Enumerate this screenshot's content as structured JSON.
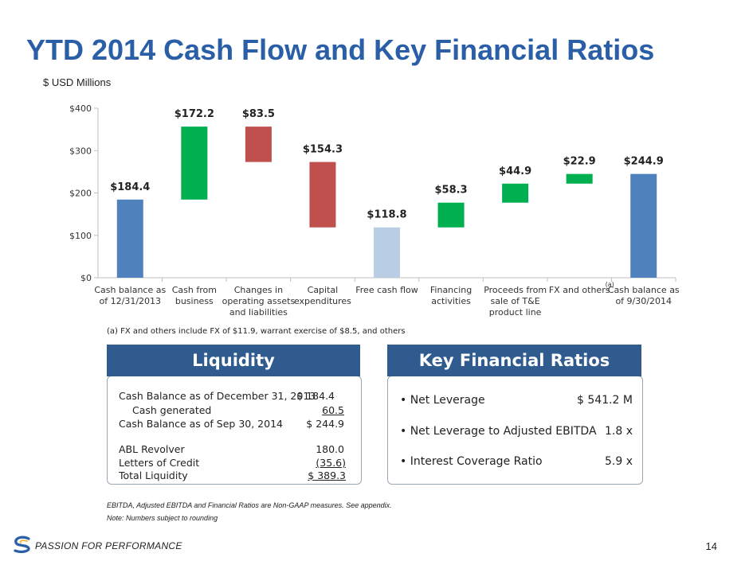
{
  "title": "YTD 2014 Cash Flow and Key Financial Ratios",
  "units": "$ USD Millions",
  "chart_data": {
    "type": "bar",
    "subtype": "waterfall",
    "ylim": [
      0,
      400
    ],
    "yticks": [
      "$0",
      "$100",
      "$200",
      "$300",
      "$400"
    ],
    "ytick_values": [
      0,
      100,
      200,
      300,
      400
    ],
    "categories": [
      [
        "Cash balance as",
        "of 12/31/2013"
      ],
      [
        "Cash from",
        "business"
      ],
      [
        "Changes in",
        "operating assets",
        "and liabilities"
      ],
      [
        "Capital",
        "expenditures"
      ],
      [
        "Free cash flow"
      ],
      [
        "Financing",
        "activities"
      ],
      [
        "Proceeds from",
        "sale of T&E",
        "product line"
      ],
      [
        "FX and others"
      ],
      [
        "Cash balance as",
        "of 9/30/2014"
      ]
    ],
    "fx_superscript": "(a)",
    "bars": [
      {
        "bottom": 0,
        "top": 184.4,
        "label": "$184.4",
        "kind": "total"
      },
      {
        "bottom": 184.4,
        "top": 356.6,
        "label": "$172.2",
        "kind": "increase"
      },
      {
        "bottom": 273.1,
        "top": 356.6,
        "label": "$83.5",
        "kind": "decrease"
      },
      {
        "bottom": 118.8,
        "top": 273.1,
        "label": "$154.3",
        "kind": "decrease"
      },
      {
        "bottom": 0,
        "top": 118.8,
        "label": "$118.8",
        "kind": "subtotal"
      },
      {
        "bottom": 118.8,
        "top": 177.1,
        "label": "$58.3",
        "kind": "increase"
      },
      {
        "bottom": 177.1,
        "top": 222.0,
        "label": "$44.9",
        "kind": "increase"
      },
      {
        "bottom": 222.0,
        "top": 244.9,
        "label": "$22.9",
        "kind": "increase"
      },
      {
        "bottom": 0,
        "top": 244.9,
        "label": "$244.9",
        "kind": "total"
      }
    ],
    "colors": {
      "total": "#4f81bd",
      "subtotal": "#b9cde5",
      "increase": "#00b050",
      "decrease": "#c0504d",
      "axis": "#bfbfbf"
    }
  },
  "footnote": "(a) FX and others include FX of $11.9, warrant exercise of $8.5, and others",
  "liquidity": {
    "header": "Liquidity",
    "rows": [
      {
        "label": "Cash Balance as of December 31, 2013",
        "value": "$ 184.4"
      },
      {
        "label": "Cash generated",
        "value": "60.5"
      },
      {
        "label": "Cash Balance as of Sep 30, 2014",
        "value": "$ 244.9"
      },
      {
        "label": "ABL Revolver",
        "value": "180.0"
      },
      {
        "label": "Letters of Credit",
        "value": "(35.6)"
      },
      {
        "label": "Total Liquidity",
        "value": "$  389.3"
      }
    ]
  },
  "ratios": {
    "header": "Key Financial Ratios",
    "rows": [
      {
        "label": "• Net Leverage",
        "value": "$ 541.2 M"
      },
      {
        "label": "• Net Leverage to Adjusted EBITDA",
        "value": "1.8  x"
      },
      {
        "label": "• Interest Coverage Ratio",
        "value": "5.9  x"
      }
    ]
  },
  "notes": {
    "line1": "EBITDA, Adjusted EBITDA and Financial Ratios are Non-GAAP measures. See appendix.",
    "line2": "Note: Numbers subject to rounding"
  },
  "footer": {
    "tagline": "PASSION FOR PERFORMANCE",
    "page": "14",
    "logo_color": "#2a5ea6",
    "logo_accent": "#f2b632"
  }
}
